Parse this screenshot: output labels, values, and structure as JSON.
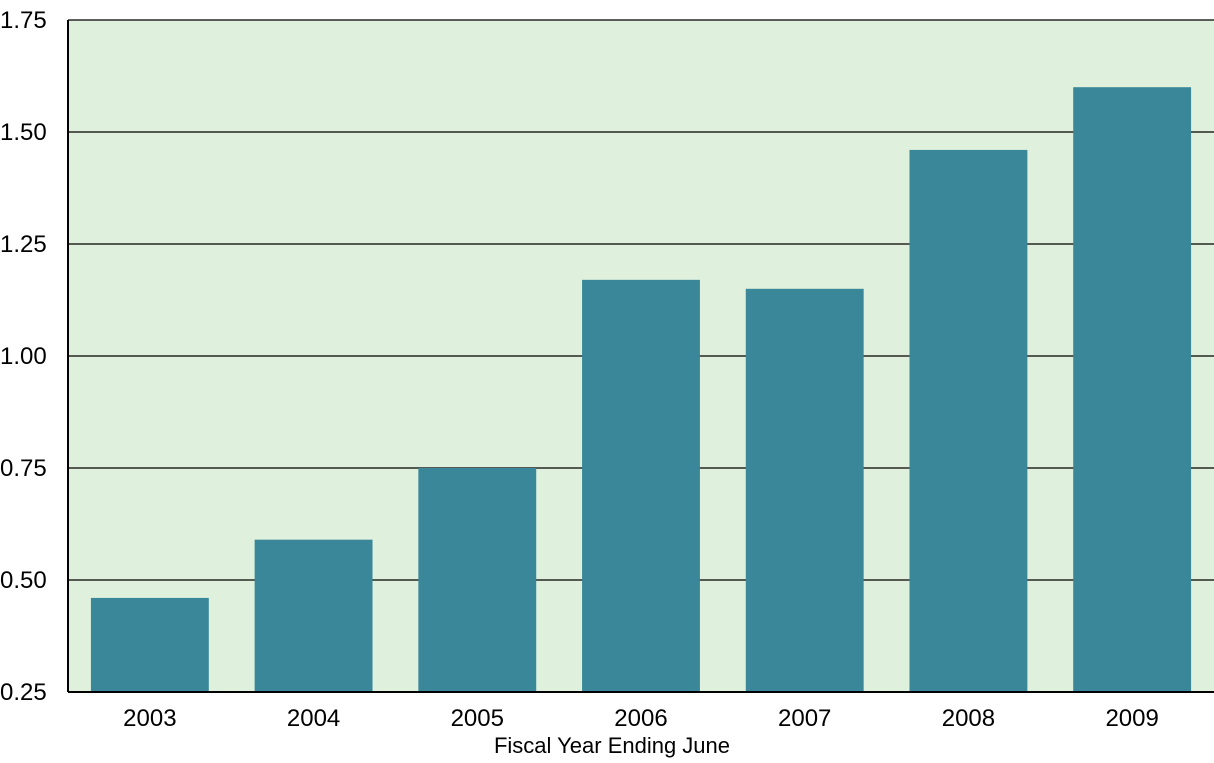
{
  "chart_data": {
    "type": "bar",
    "title": "",
    "xlabel": "Fiscal Year Ending June",
    "ylabel": "",
    "categories": [
      "2003",
      "2004",
      "2005",
      "2006",
      "2007",
      "2008",
      "2009"
    ],
    "values": [
      0.46,
      0.59,
      0.75,
      1.17,
      1.15,
      1.46,
      1.6
    ],
    "ylim": [
      0.25,
      1.75
    ],
    "yticks": [
      0.25,
      0.5,
      0.75,
      1.0,
      1.25,
      1.5,
      1.75
    ],
    "ytick_labels": [
      "0.25",
      "0.50",
      "0.75",
      "1.00",
      "1.25",
      "1.50",
      "1.75"
    ],
    "grid": true,
    "legend": "none",
    "colors": {
      "bar": "#398799",
      "plot_background": "#dff0dc",
      "gridline": "#000000",
      "axis": "#000000"
    }
  }
}
